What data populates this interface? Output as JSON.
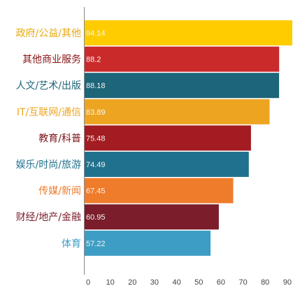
{
  "chart_data": {
    "type": "bar",
    "orientation": "horizontal",
    "title": "",
    "xlabel": "",
    "ylabel": "",
    "xlim": [
      0,
      95
    ],
    "ticks": [
      0,
      10,
      20,
      30,
      40,
      50,
      60,
      70,
      80,
      90
    ],
    "grid": false,
    "categories": [
      "政府/公益/其他",
      "其他商业服务",
      "人文/艺术/出版",
      "IT/互联网/通信",
      "教育/科普",
      "娱乐/时尚/旅游",
      "传媒/新闻",
      "财经/地产/金融",
      "体育"
    ],
    "values": [
      94.14,
      88.2,
      88.18,
      83.89,
      75.48,
      74.49,
      67.45,
      60.95,
      57.22
    ],
    "value_labels": [
      "94.14",
      "88.2",
      "88.18",
      "83.89",
      "75.48",
      "74.49",
      "67.45",
      "60.95",
      "57.22"
    ],
    "colors": [
      "#FFCC00",
      "#CB2A2B",
      "#1D6579",
      "#EDA521",
      "#A21C22",
      "#20718E",
      "#EF7C2A",
      "#7B1D2B",
      "#3E9DC4"
    ],
    "label_colors": [
      "#E9A80C",
      "#8A1416",
      "#1D6579",
      "#EDA521",
      "#7B1218",
      "#20718E",
      "#EF7C2A",
      "#7B1D2B",
      "#3E9DC4"
    ]
  }
}
